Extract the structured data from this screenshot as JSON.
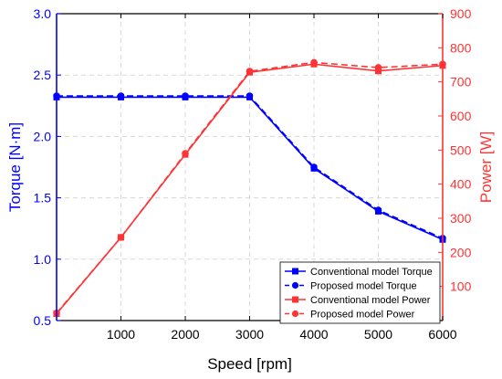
{
  "chart_data": {
    "type": "line",
    "xlabel": "Speed [rpm]",
    "ylabel_left": "Torque [N·m]",
    "ylabel_right": "Power [W]",
    "xlim": [
      0,
      6000
    ],
    "ylim_left": [
      0.5,
      3.0
    ],
    "ylim_right": [
      0,
      900
    ],
    "x_ticks": [
      1000,
      2000,
      3000,
      4000,
      5000,
      6000
    ],
    "y_left_ticks": [
      0.5,
      1.0,
      1.5,
      2.0,
      2.5,
      3.0
    ],
    "y_right_ticks": [
      100,
      200,
      300,
      400,
      500,
      600,
      700,
      800,
      900
    ],
    "grid": true,
    "legend_position": "bottom-right",
    "colors": {
      "torque": "#0000ff",
      "power": "#ff3333",
      "grid": "#d8d8d8"
    },
    "series": [
      {
        "name": "Conventional model Torque",
        "axis": "left",
        "color": "#0000ff",
        "marker": "square",
        "dash": "solid",
        "x": [
          0,
          1000,
          2000,
          3000,
          4000,
          5000,
          6000
        ],
        "values": [
          2.32,
          2.32,
          2.32,
          2.32,
          1.74,
          1.39,
          1.16
        ]
      },
      {
        "name": "Proposed model Torque",
        "axis": "left",
        "color": "#0000ff",
        "marker": "circle",
        "dash": "dashed",
        "x": [
          0,
          1000,
          2000,
          3000,
          4000,
          5000,
          6000
        ],
        "values": [
          2.33,
          2.33,
          2.33,
          2.33,
          1.75,
          1.4,
          1.17
        ]
      },
      {
        "name": "Conventional model Power",
        "axis": "right",
        "color": "#ff3333",
        "marker": "square",
        "dash": "solid",
        "x": [
          0,
          1000,
          2000,
          3000,
          4000,
          5000,
          6000
        ],
        "values": [
          20,
          244,
          487,
          728,
          752,
          732,
          748
        ]
      },
      {
        "name": "Proposed model Power",
        "axis": "right",
        "color": "#ff3333",
        "marker": "circle",
        "dash": "dashed",
        "x": [
          0,
          1000,
          2000,
          3000,
          4000,
          5000,
          6000
        ],
        "values": [
          22,
          244,
          490,
          731,
          757,
          742,
          752
        ]
      }
    ]
  }
}
